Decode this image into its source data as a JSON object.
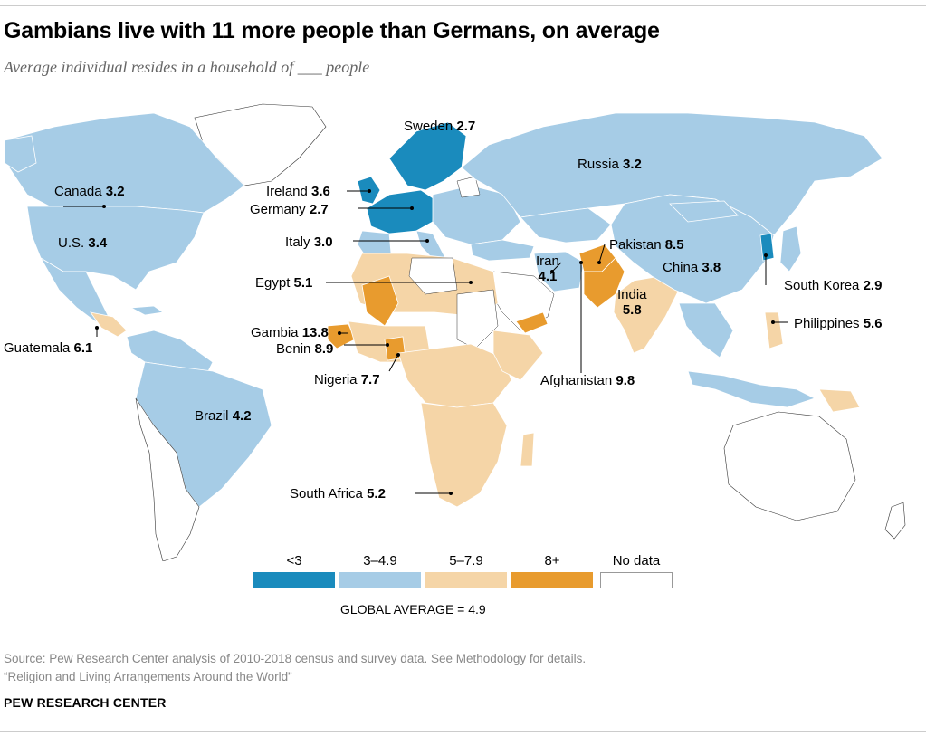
{
  "header": {
    "title": "Gambians live with 11 more people than Germans, on average",
    "subtitle": "Average individual resides in a household of ___ people"
  },
  "colors": {
    "lt3": "#1a8bbd",
    "c3_49": "#a6cce6",
    "c5_79": "#f5d5a7",
    "c8p": "#e89b2e",
    "nodata": "#ffffff",
    "border": "#ffffff",
    "outline": "#333333"
  },
  "countries": [
    {
      "name": "Sweden",
      "value": "2.7"
    },
    {
      "name": "Russia",
      "value": "3.2"
    },
    {
      "name": "Canada",
      "value": "3.2"
    },
    {
      "name": "Ireland",
      "value": "3.6"
    },
    {
      "name": "Germany",
      "value": "2.7"
    },
    {
      "name": "U.S.",
      "value": "3.4"
    },
    {
      "name": "Italy",
      "value": "3.0"
    },
    {
      "name": "Pakistan",
      "value": "8.5"
    },
    {
      "name": "Iran",
      "value": "4.1"
    },
    {
      "name": "China",
      "value": "3.8"
    },
    {
      "name": "Egypt",
      "value": "5.1"
    },
    {
      "name": "South Korea",
      "value": "2.9"
    },
    {
      "name": "India",
      "value": "5.8"
    },
    {
      "name": "Gambia",
      "value": "13.8"
    },
    {
      "name": "Philippines",
      "value": "5.6"
    },
    {
      "name": "Guatemala",
      "value": "6.1"
    },
    {
      "name": "Benin",
      "value": "8.9"
    },
    {
      "name": "Nigeria",
      "value": "7.7"
    },
    {
      "name": "Afghanistan",
      "value": "9.8"
    },
    {
      "name": "Brazil",
      "value": "4.2"
    },
    {
      "name": "South Africa",
      "value": "5.2"
    }
  ],
  "legend": {
    "items": [
      {
        "label": "<3",
        "color": "#1a8bbd"
      },
      {
        "label": "3–4.9",
        "color": "#a6cce6"
      },
      {
        "label": "5–7.9",
        "color": "#f5d5a7"
      },
      {
        "label": "8+",
        "color": "#e89b2e"
      },
      {
        "label": "No data",
        "color": "#ffffff"
      }
    ],
    "global_average": "GLOBAL AVERAGE = 4.9"
  },
  "footer": {
    "source_line1": "Source: Pew Research Center analysis of 2010-2018 census and survey data. See Methodology for details.",
    "source_line2": "“Religion and Living Arrangements Around the World”",
    "brand": "PEW RESEARCH CENTER"
  }
}
